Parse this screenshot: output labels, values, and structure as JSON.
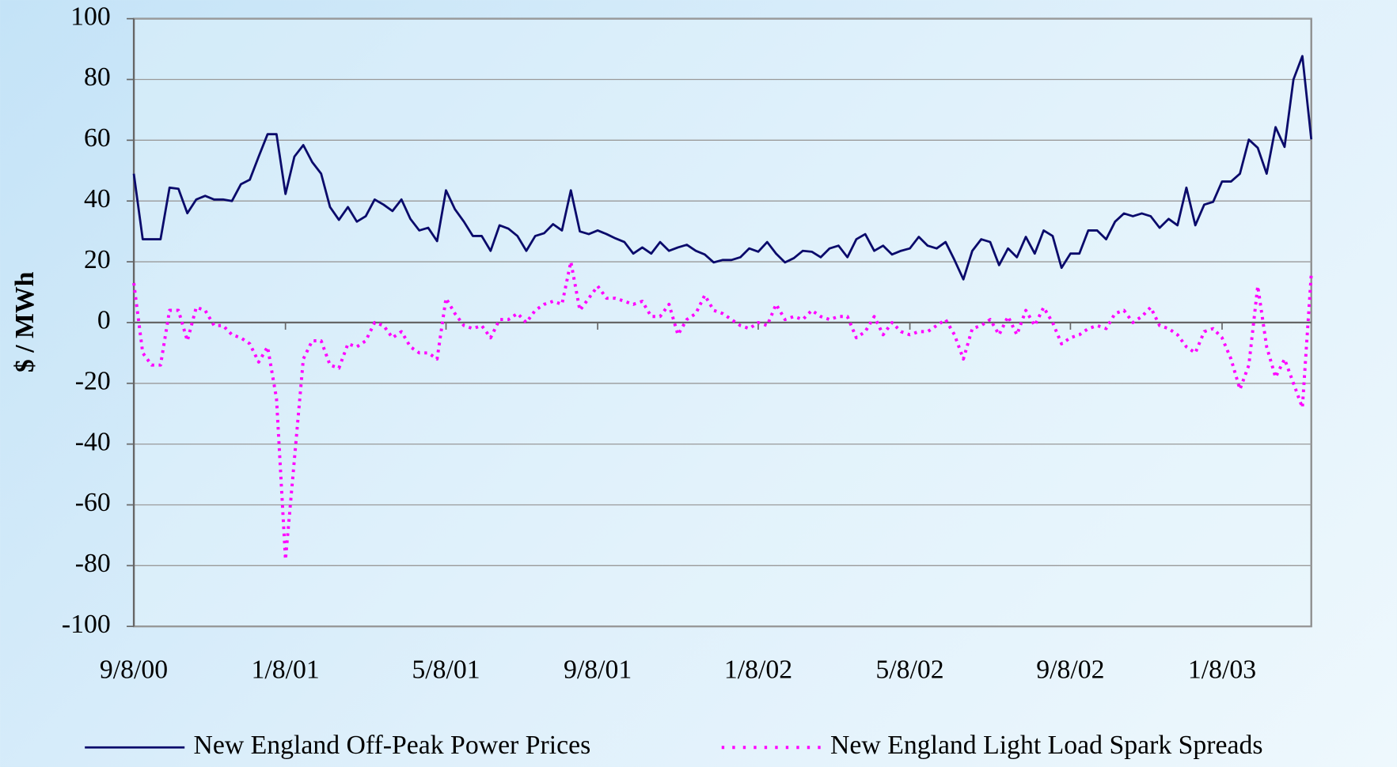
{
  "chart_data": {
    "type": "line",
    "y_label": "$ / MWh",
    "categories": [
      "9/8/00",
      null,
      null,
      null,
      null,
      null,
      null,
      null,
      null,
      null,
      null,
      null,
      null,
      null,
      null,
      null,
      null,
      "1/8/01",
      null,
      null,
      null,
      null,
      null,
      null,
      null,
      null,
      null,
      null,
      null,
      null,
      null,
      null,
      null,
      null,
      null,
      "5/8/01",
      null,
      null,
      null,
      null,
      null,
      null,
      null,
      null,
      null,
      null,
      null,
      null,
      null,
      null,
      null,
      null,
      "9/8/01",
      null,
      null,
      null,
      null,
      null,
      null,
      null,
      null,
      null,
      null,
      null,
      null,
      null,
      null,
      null,
      null,
      null,
      "1/8/02",
      null,
      null,
      null,
      null,
      null,
      null,
      null,
      null,
      null,
      null,
      null,
      null,
      null,
      null,
      null,
      null,
      "5/8/02",
      null,
      null,
      null,
      null,
      null,
      null,
      null,
      null,
      null,
      null,
      null,
      null,
      null,
      null,
      null,
      null,
      null,
      "9/8/02",
      null,
      null,
      null,
      null,
      null,
      null,
      null,
      null,
      null,
      null,
      null,
      null,
      null,
      null,
      null,
      null,
      "1/8/03",
      null,
      null,
      null,
      null,
      null,
      null,
      null,
      null,
      null,
      null
    ],
    "series": [
      {
        "name": "New England Off-Peak Power Prices",
        "color": "#0a0a6b",
        "dash": false,
        "values": [
          49,
          27.4,
          27.4,
          27.4,
          44.4,
          44,
          36,
          40.5,
          41.7,
          40.5,
          40.5,
          40,
          45.5,
          47,
          54.6,
          62,
          62,
          42.3,
          54.6,
          58.4,
          52.8,
          49,
          38,
          33.8,
          38,
          33.2,
          35,
          40.5,
          38.8,
          36.7,
          40.5,
          34.1,
          30.3,
          31.2,
          26.8,
          43.5,
          37.3,
          33.2,
          28.5,
          28.5,
          23.6,
          32,
          30.9,
          28.5,
          23.6,
          28.5,
          29.4,
          32.4,
          30.3,
          43.5,
          30,
          29.1,
          30.3,
          29.1,
          27.7,
          26.5,
          22.7,
          24.7,
          22.7,
          26.5,
          23.6,
          24.7,
          25.6,
          23.6,
          22.4,
          19.8,
          20.6,
          20.6,
          21.5,
          24.4,
          23.3,
          26.5,
          22.7,
          19.8,
          21.2,
          23.6,
          23.3,
          21.5,
          24.4,
          25.3,
          21.5,
          27.4,
          29.1,
          23.6,
          25.3,
          22.4,
          23.6,
          24.4,
          28.2,
          25.3,
          24.4,
          26.5,
          20.6,
          14.2,
          23.6,
          27.4,
          26.5,
          18.9,
          24.4,
          21.5,
          28.2,
          22.7,
          30.3,
          28.5,
          18,
          22.7,
          22.7,
          30.3,
          30.3,
          27.4,
          33.2,
          35.9,
          35,
          35.9,
          35,
          31.2,
          34.1,
          32,
          44.4,
          32,
          38.8,
          39.7,
          46.4,
          46.4,
          49,
          60.2,
          57.5,
          49,
          64.3,
          57.8,
          80,
          87.7,
          60.3
        ]
      },
      {
        "name": "New England Light Load Spark Spreads",
        "color": "#ff00ff",
        "dash": true,
        "values": [
          13,
          -10,
          -14,
          -14,
          4,
          4,
          -6,
          5,
          4,
          -1,
          -1,
          -4,
          -5,
          -7,
          -13,
          -8,
          -25,
          -78,
          -45,
          -12,
          -6,
          -6,
          -14,
          -15,
          -7,
          -8,
          -6,
          0,
          -1,
          -5,
          -3,
          -8,
          -10,
          -10,
          -12,
          8,
          3,
          -1,
          -2,
          -1,
          -5,
          1,
          1,
          3,
          0,
          4,
          6,
          7,
          6,
          20,
          4,
          8,
          12,
          8,
          8,
          7,
          6,
          7,
          2,
          2,
          6,
          -4,
          1,
          3,
          9,
          4,
          3,
          1,
          -1,
          -2,
          0,
          -1,
          6,
          1,
          2,
          1,
          4,
          2,
          1,
          2,
          2,
          -5,
          -3,
          2,
          -4,
          0,
          -3,
          -4,
          -3,
          -3,
          -1,
          1,
          -4,
          -12,
          -2,
          -1,
          1,
          -4,
          2,
          -4,
          4,
          -1,
          5,
          0,
          -7,
          -5,
          -4,
          -2,
          -1,
          -2,
          3,
          4,
          0,
          2,
          5,
          -1,
          -2,
          -4,
          -8,
          -10,
          -3,
          -2,
          -5,
          -12,
          -22,
          -14,
          12,
          -8,
          -18,
          -12,
          -20,
          -28,
          16
        ]
      }
    ],
    "ylim": [
      -100,
      100
    ],
    "yticks": [
      -100,
      -80,
      -60,
      -40,
      -20,
      0,
      20,
      40,
      60,
      80,
      100
    ],
    "grid": true,
    "legend": "bottom"
  }
}
